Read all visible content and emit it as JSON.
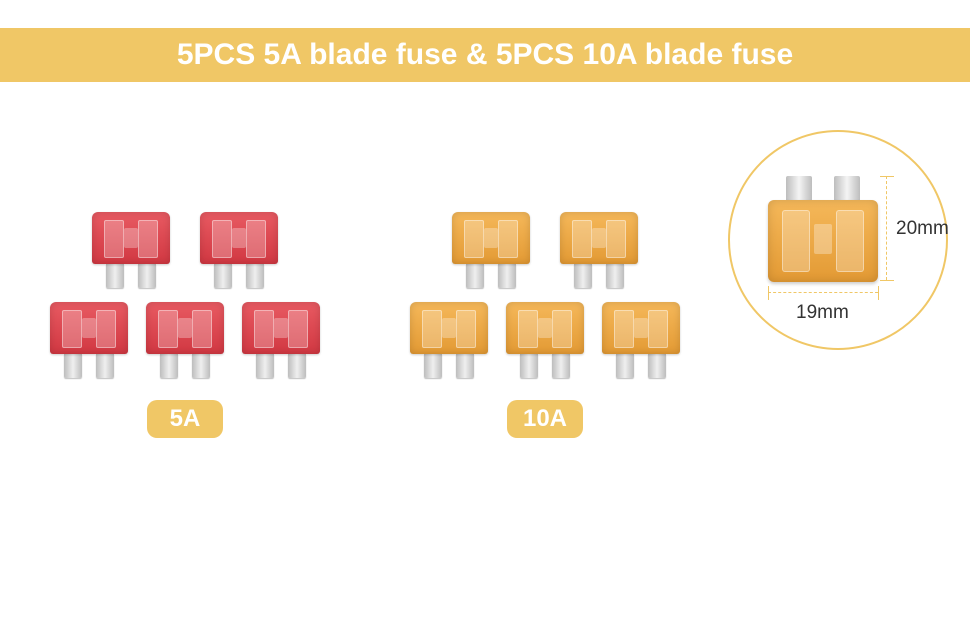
{
  "header": {
    "title": "5PCS 5A blade fuse & 5PCS 10A blade fuse",
    "bg_color": "#f0c766",
    "text_color": "#ffffff"
  },
  "groups": {
    "group_5a": {
      "label": "5A",
      "count": 5,
      "fuse_color": "#d13842"
    },
    "group_10a": {
      "label": "10A",
      "count": 5,
      "fuse_color": "#e39a34"
    }
  },
  "dimensions": {
    "height_label": "20mm",
    "width_label": "19mm",
    "circle_color": "#f0c766"
  },
  "badge": {
    "bg_color": "#f0c766",
    "text_color": "#ffffff"
  }
}
